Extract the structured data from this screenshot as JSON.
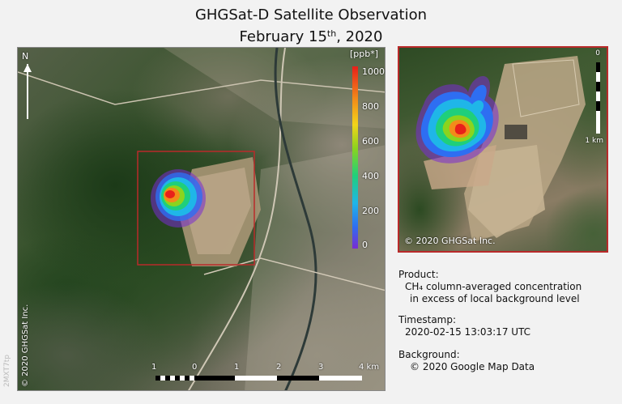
{
  "title": {
    "line1": "GHGSat-D Satellite Observation",
    "line2_prefix": "February 15",
    "line2_sup": "th",
    "line2_suffix": ", 2020"
  },
  "colorbar": {
    "unit": "[ppb*]",
    "ticks": [
      "1000",
      "800",
      "600",
      "400",
      "200",
      "0"
    ],
    "colors": [
      "#7a2bd1",
      "#2e6ef2",
      "#1fb6e8",
      "#1fcf7b",
      "#8bd41e",
      "#f2d41a",
      "#f28b1a",
      "#e8201a"
    ]
  },
  "north": "N",
  "scale": {
    "labels": [
      "1",
      "0",
      "1",
      "2",
      "3",
      "4 km"
    ]
  },
  "inset_scale": {
    "top": "0",
    "bottom": "1 km"
  },
  "copyright": {
    "main": "© 2020 GHGSat Inc.",
    "inset": "© 2020 GHGSat Inc.",
    "watermark": "2MXT7tp"
  },
  "info": {
    "product_heading": "Product:",
    "product_line1": "CH₄ column-averaged concentration",
    "product_line2": "in excess of local background level",
    "timestamp_heading": "Timestamp:",
    "timestamp_value": "2020-02-15 13:03:17 UTC",
    "background_heading": "Background:",
    "background_value": "© 2020 Google Map Data"
  },
  "accent_color": "#b92a2a"
}
